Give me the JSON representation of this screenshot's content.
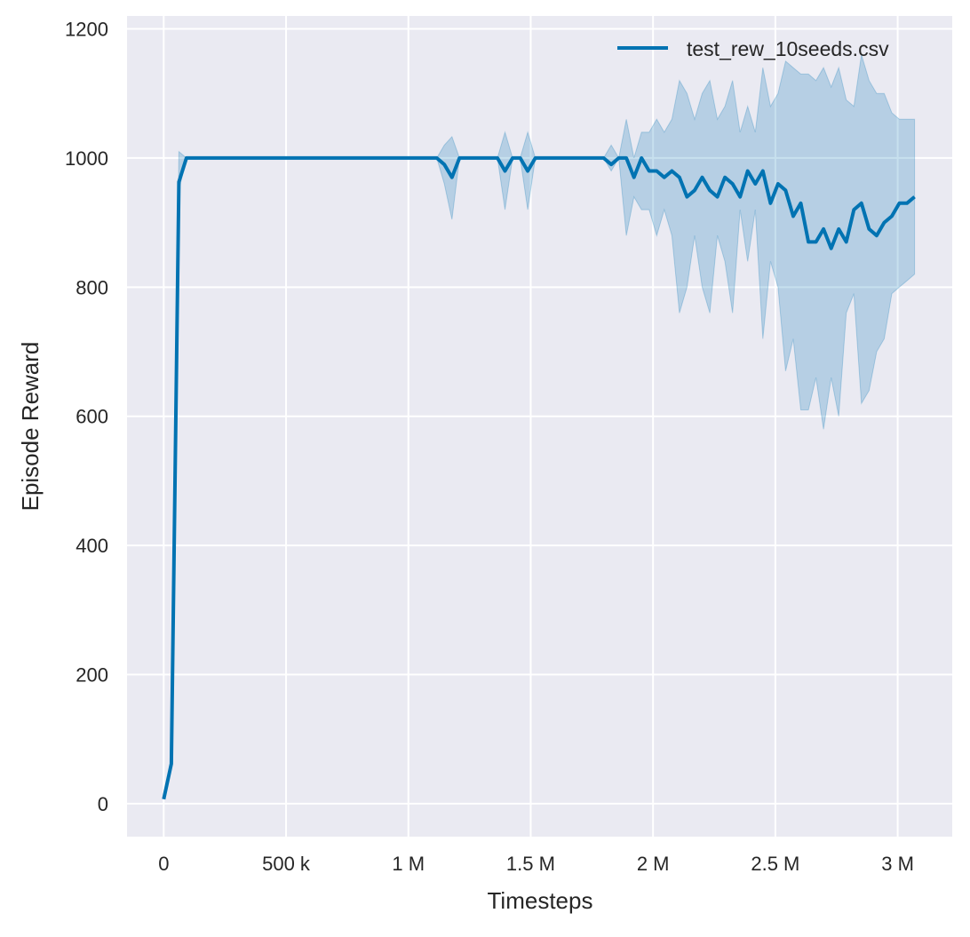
{
  "chart_data": {
    "type": "line",
    "title": "",
    "xlabel": "Timesteps",
    "ylabel": "Episode Reward",
    "xlim": [
      -150000,
      3223000
    ],
    "ylim": [
      -51,
      1220
    ],
    "grid": true,
    "legend_position": "top-right",
    "x_ticks": [
      0,
      500000,
      1000000,
      1500000,
      2000000,
      2500000,
      3000000
    ],
    "x_tick_labels": [
      "0",
      "500 k",
      "1 M",
      "1.5 M",
      "2 M",
      "2.5 M",
      "3 M"
    ],
    "y_ticks": [
      0,
      200,
      400,
      600,
      800,
      1000,
      1200
    ],
    "y_tick_labels": [
      "0",
      "200",
      "400",
      "600",
      "800",
      "1000",
      "1200"
    ],
    "colors": {
      "line": "#0173b2",
      "band": "#0173b2",
      "background": "#eaeaf2",
      "grid": "#ffffff"
    },
    "x": [
      0,
      31000,
      62000,
      93000,
      124000,
      155000,
      186000,
      217000,
      248000,
      279000,
      310000,
      341000,
      372000,
      403000,
      434000,
      465000,
      496000,
      527000,
      558000,
      589000,
      620000,
      651000,
      682000,
      713000,
      744000,
      775000,
      806000,
      837000,
      868000,
      899000,
      930000,
      961000,
      992000,
      1023000,
      1054000,
      1085000,
      1116000,
      1147000,
      1178000,
      1209000,
      1240000,
      1271000,
      1302000,
      1333000,
      1364000,
      1395000,
      1426000,
      1457000,
      1488000,
      1519000,
      1550000,
      1581000,
      1612000,
      1643000,
      1674000,
      1705000,
      1736000,
      1767000,
      1798000,
      1829000,
      1860000,
      1891000,
      1922000,
      1953000,
      1984000,
      2015000,
      2046000,
      2077000,
      2108000,
      2139000,
      2170000,
      2201000,
      2232000,
      2263000,
      2294000,
      2325000,
      2356000,
      2387000,
      2418000,
      2449000,
      2480000,
      2511000,
      2542000,
      2573000,
      2604000,
      2635000,
      2666000,
      2697000,
      2728000,
      2759000,
      2790000,
      2821000,
      2852000,
      2883000,
      2914000,
      2945000,
      2976000,
      3007000,
      3038000,
      3069000
    ],
    "series": [
      {
        "name": "test_rew_10seeds.csv",
        "values": [
          7,
          62,
          963,
          1000,
          1000,
          1000,
          1000,
          1000,
          1000,
          1000,
          1000,
          1000,
          1000,
          1000,
          1000,
          1000,
          1000,
          1000,
          1000,
          1000,
          1000,
          1000,
          1000,
          1000,
          1000,
          1000,
          1000,
          1000,
          1000,
          1000,
          1000,
          1000,
          1000,
          1000,
          1000,
          1000,
          1000,
          990,
          970,
          1000,
          1000,
          1000,
          1000,
          1000,
          1000,
          980,
          1000,
          1000,
          980,
          1000,
          1000,
          1000,
          1000,
          1000,
          1000,
          1000,
          1000,
          1000,
          1000,
          990,
          1000,
          1000,
          970,
          1000,
          980,
          980,
          970,
          980,
          970,
          940,
          950,
          970,
          950,
          940,
          970,
          960,
          940,
          980,
          960,
          980,
          930,
          960,
          950,
          910,
          930,
          870,
          870,
          890,
          860,
          890,
          870,
          920,
          930,
          890,
          880,
          900,
          910,
          930,
          930,
          940
        ],
        "upper": [
          7,
          62,
          1010,
          1000,
          1000,
          1000,
          1000,
          1000,
          1000,
          1000,
          1000,
          1000,
          1000,
          1000,
          1000,
          1000,
          1000,
          1000,
          1000,
          1000,
          1000,
          1000,
          1000,
          1000,
          1000,
          1000,
          1000,
          1000,
          1000,
          1000,
          1000,
          1000,
          1000,
          1000,
          1000,
          1000,
          1000,
          1020,
          1033,
          1000,
          1000,
          1000,
          1000,
          1000,
          1000,
          1040,
          1000,
          1000,
          1040,
          1000,
          1000,
          1000,
          1000,
          1000,
          1000,
          1000,
          1000,
          1000,
          1000,
          1020,
          1000,
          1060,
          1000,
          1040,
          1040,
          1060,
          1040,
          1060,
          1120,
          1100,
          1060,
          1100,
          1120,
          1060,
          1080,
          1120,
          1040,
          1080,
          1040,
          1140,
          1080,
          1100,
          1150,
          1140,
          1130,
          1130,
          1120,
          1140,
          1110,
          1140,
          1090,
          1080,
          1160,
          1120,
          1100,
          1100,
          1070,
          1060,
          1060,
          1060
        ],
        "lower": [
          7,
          62,
          950,
          1000,
          1000,
          1000,
          1000,
          1000,
          1000,
          1000,
          1000,
          1000,
          1000,
          1000,
          1000,
          1000,
          1000,
          1000,
          1000,
          1000,
          1000,
          1000,
          1000,
          1000,
          1000,
          1000,
          1000,
          1000,
          1000,
          1000,
          1000,
          1000,
          1000,
          1000,
          1000,
          1000,
          1000,
          960,
          905,
          1000,
          1000,
          1000,
          1000,
          1000,
          1000,
          920,
          1000,
          1000,
          920,
          1000,
          1000,
          1000,
          1000,
          1000,
          1000,
          1000,
          1000,
          1000,
          1000,
          980,
          1000,
          880,
          940,
          920,
          920,
          880,
          920,
          880,
          760,
          800,
          880,
          800,
          760,
          880,
          840,
          760,
          920,
          840,
          920,
          720,
          840,
          800,
          670,
          720,
          610,
          610,
          660,
          580,
          660,
          600,
          760,
          790,
          620,
          640,
          700,
          720,
          790,
          800,
          810,
          820
        ]
      }
    ]
  }
}
